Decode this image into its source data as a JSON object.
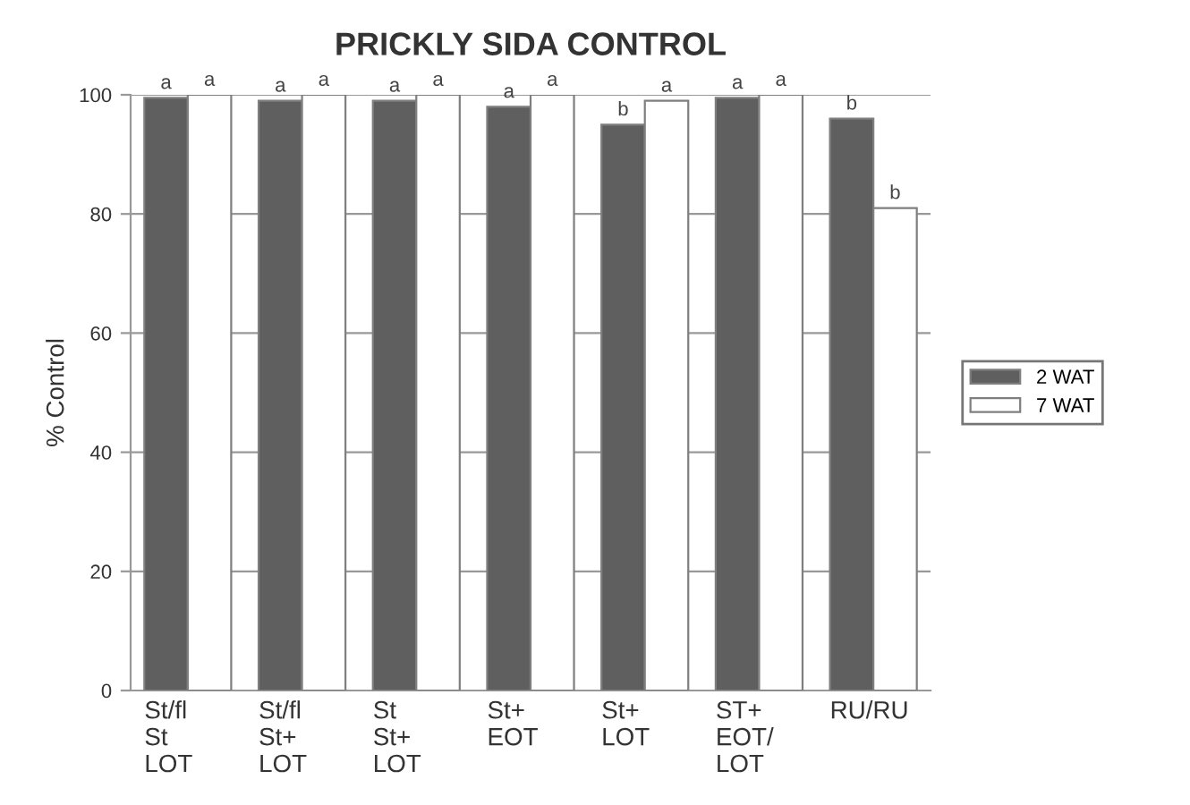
{
  "chart_data": {
    "type": "bar",
    "title": "PRICKLY SIDA CONTROL",
    "ylabel": "% Control",
    "categories": [
      "St/fl\nSt\nLOT",
      "St/fl\nSt+\nLOT",
      "St\nSt+\nLOT",
      "St+\nEOT",
      "St+\nLOT",
      "ST+\nEOT/\nLOT",
      "RU/RU"
    ],
    "series": [
      {
        "name": "2 WAT",
        "color": "#5f5f5f",
        "values": [
          99.5,
          99,
          99,
          98,
          95,
          99.5,
          96
        ],
        "value_labels": [
          "a",
          "a",
          "a",
          "a",
          "b",
          "a",
          "b"
        ]
      },
      {
        "name": "7 WAT",
        "color": "#ffffff",
        "values": [
          100,
          100,
          100,
          100,
          99,
          100,
          81
        ],
        "value_labels": [
          "a",
          "a",
          "a",
          "a",
          "a",
          "a",
          "b"
        ]
      }
    ],
    "ylim": [
      0,
      100
    ],
    "yticks": [
      0,
      20,
      40,
      60,
      80,
      100
    ],
    "grid": "y",
    "legend": "right"
  }
}
